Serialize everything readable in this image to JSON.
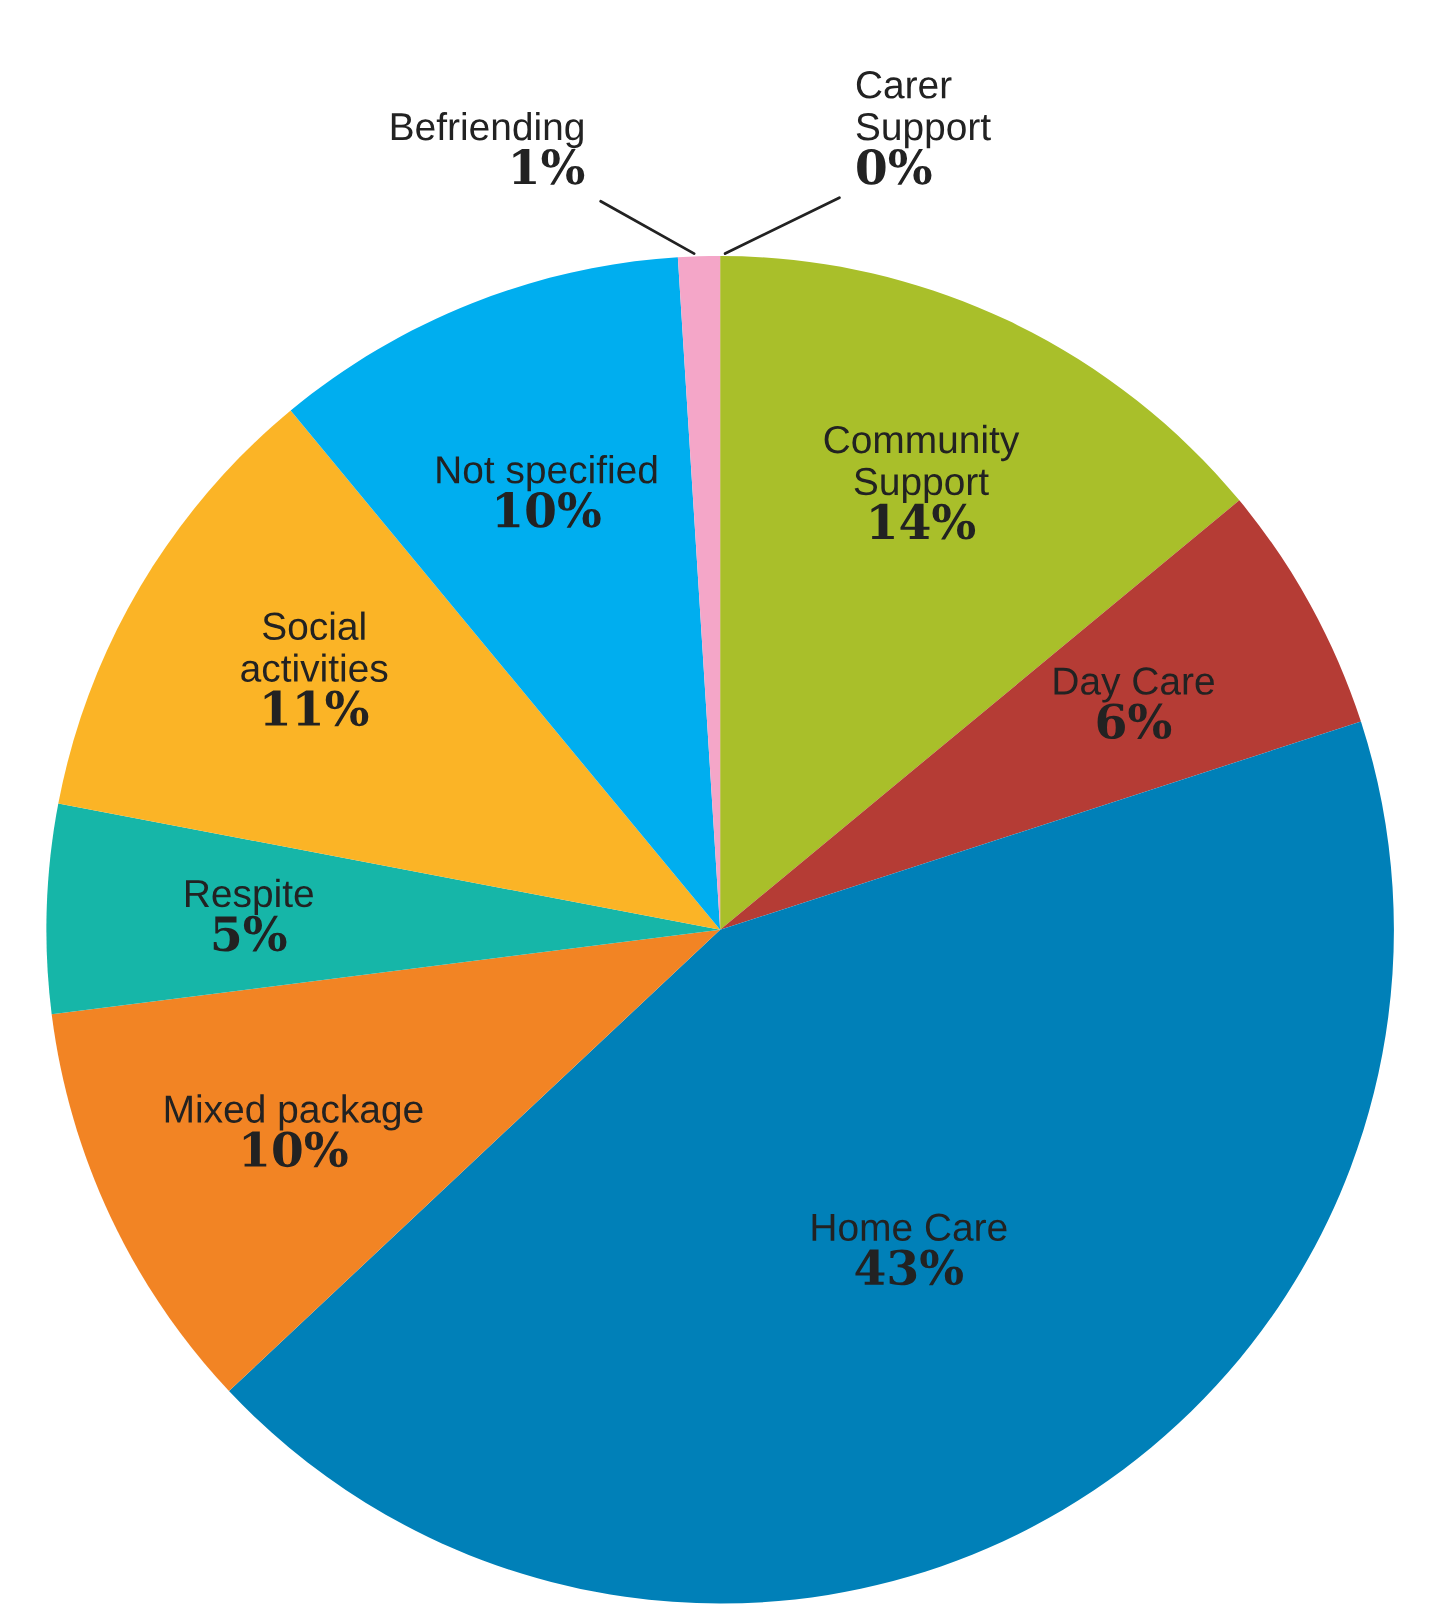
{
  "chart_data": {
    "type": "pie",
    "categories": [
      "Carer\nSupport",
      "Community\nSupport",
      "Day Care",
      "Home Care",
      "Mixed package",
      "Respite",
      "Social\nactivities",
      "Not specified",
      "Befriending"
    ],
    "values": [
      0,
      14,
      6,
      43,
      10,
      5,
      11,
      10,
      1
    ],
    "value_labels": [
      "0%",
      "14%",
      "6%",
      "43%",
      "10%",
      "5%",
      "11%",
      "10%",
      "1%"
    ],
    "colors": [
      "#1a1a1a",
      "#a9bf2a",
      "#b53c35",
      "#0080b8",
      "#f28424",
      "#16b6a8",
      "#fbb426",
      "#00aeef",
      "#f4a6c8"
    ],
    "legend": false
  }
}
